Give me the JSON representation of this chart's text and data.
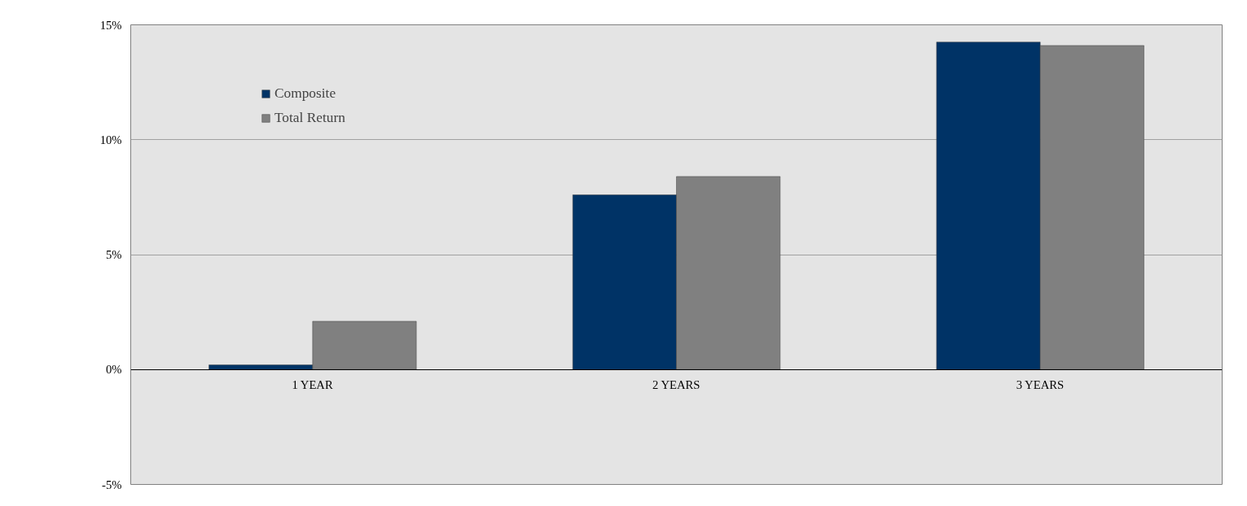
{
  "chart_data": {
    "type": "bar",
    "categories": [
      "1 YEAR",
      "2 YEARS",
      "3 YEARS"
    ],
    "series": [
      {
        "name": "Composite",
        "color": "#003366",
        "values": [
          0.2,
          7.6,
          14.25
        ]
      },
      {
        "name": "Total Return",
        "color": "#808080",
        "values": [
          2.1,
          8.4,
          14.1
        ]
      }
    ],
    "ylim": [
      -5,
      15
    ],
    "yticks": [
      {
        "value": -5,
        "label": "-5%"
      },
      {
        "value": 0,
        "label": "0%"
      },
      {
        "value": 5,
        "label": "5%"
      },
      {
        "value": 10,
        "label": "10%"
      },
      {
        "value": 15,
        "label": "15%"
      }
    ],
    "grid": "y",
    "legend": "top left"
  }
}
